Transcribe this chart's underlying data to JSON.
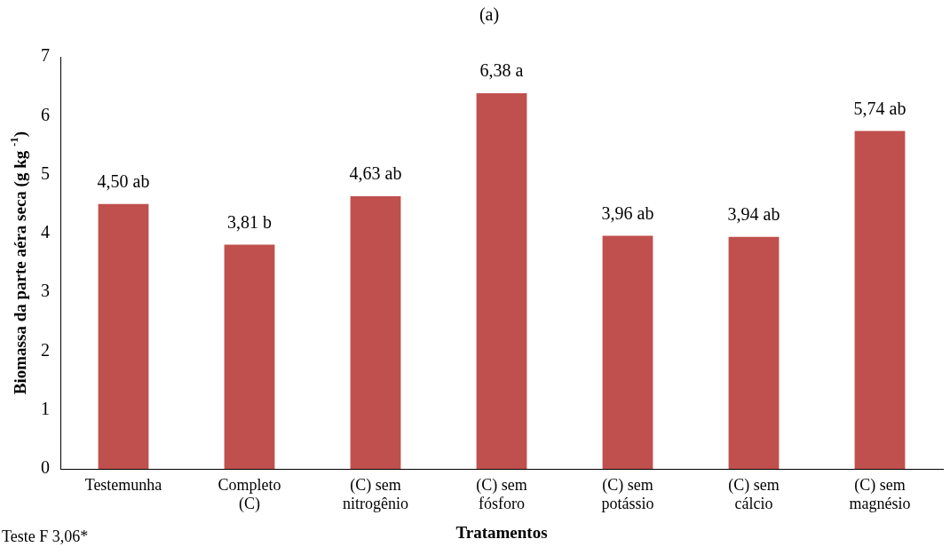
{
  "chart_data": {
    "type": "bar",
    "title": "(a)",
    "xlabel": "Tratamentos",
    "ylabel": "Biomassa da parte aéra seca (g kg $^{-1}$)",
    "categories": [
      "Testemunha",
      "Completo (C)",
      "(C) sem nitrogênio",
      "(C) sem fósforo",
      "(C) sem potássio",
      "(C) sem cálcio",
      "(C) sem magnésio"
    ],
    "values": [
      4.5,
      3.81,
      4.63,
      6.38,
      3.96,
      3.94,
      5.74
    ],
    "value_labels": [
      "4,50 ab",
      "3,81 b",
      "4,63 ab",
      "6,38 a",
      "3,96 ab",
      "3,94 ab",
      "5,74 ab"
    ],
    "color": "#c0504d",
    "ylim": [
      0,
      7
    ],
    "yticks": [
      0,
      1,
      2,
      3,
      4,
      5,
      6,
      7
    ],
    "grid": false,
    "legend": false,
    "annotations": [
      "Teste F 3,06*"
    ]
  }
}
